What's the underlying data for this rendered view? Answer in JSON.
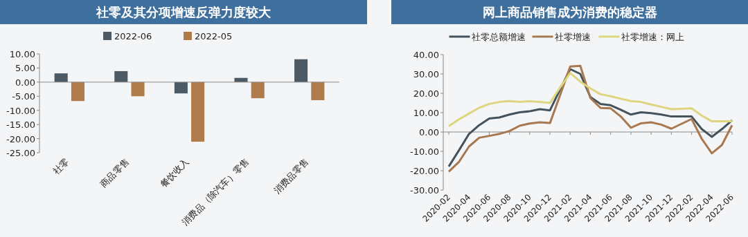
{
  "chart_data": [
    {
      "type": "bar",
      "title": "社零及其分项增速反弹力度较大",
      "categories": [
        "社零",
        "商品零售",
        "餐饮收入",
        "消费品（除汽车）零售",
        "消费品零售"
      ],
      "series": [
        {
          "name": "2022-06",
          "color": "#4b5a64",
          "values": [
            3.1,
            3.9,
            -4.0,
            1.5,
            8.1
          ]
        },
        {
          "name": "2022-05",
          "color": "#b07b4b",
          "values": [
            -6.7,
            -5.0,
            -21.1,
            -5.7,
            -6.4
          ]
        }
      ],
      "ylim": [
        -25,
        10
      ],
      "yticks": [
        {
          "value": -25,
          "label": "-25.00"
        },
        {
          "value": -20,
          "label": "-20.00"
        },
        {
          "value": -15,
          "label": "-15.00"
        },
        {
          "value": -10,
          "label": "-10.00"
        },
        {
          "value": -5,
          "label": "-5.00"
        },
        {
          "value": 0,
          "label": "0.00"
        },
        {
          "value": 5,
          "label": "5.00"
        },
        {
          "value": 10,
          "label": "10.00"
        }
      ],
      "legend": "top"
    },
    {
      "type": "line",
      "title": "网上商品销售成为消费的稳定器",
      "x": [
        "2020-02",
        "2020-03",
        "2020-04",
        "2020-05",
        "2020-06",
        "2020-07",
        "2020-08",
        "2020-09",
        "2020-10",
        "2020-11",
        "2020-12",
        "2021-01",
        "2021-02",
        "2021-03",
        "2021-04",
        "2021-05",
        "2021-06",
        "2021-07",
        "2021-08",
        "2021-09",
        "2021-10",
        "2021-11",
        "2021-12",
        "2022-01",
        "2022-02",
        "2022-03",
        "2022-04",
        "2022-05",
        "2022-06"
      ],
      "series": [
        {
          "name": "社零总额增速",
          "color": "#44525c",
          "values": [
            -17.8,
            -9.5,
            -1,
            3.5,
            7,
            7.5,
            9,
            10.2,
            10.7,
            11.8,
            11.2,
            22,
            32.5,
            30,
            18,
            14.5,
            13.8,
            11.5,
            9,
            10.2,
            9.7,
            9,
            8,
            8,
            8,
            1.5,
            -2.5,
            1.5,
            6
          ]
        },
        {
          "name": "社零增速",
          "color": "#a87850",
          "values": [
            -20.5,
            -15.5,
            -7.5,
            -3,
            -2,
            -1,
            0.5,
            3.2,
            4.4,
            5,
            4.6,
            19,
            33.8,
            34.2,
            17.5,
            12.4,
            12.2,
            8,
            2.2,
            4.5,
            5,
            3.8,
            1.7,
            4.2,
            6.7,
            -3.5,
            -11,
            -6.7,
            3.5
          ]
        },
        {
          "name": "社零增速：网上",
          "color": "#ddd67e",
          "values": [
            3,
            6.5,
            9.5,
            12.5,
            14.5,
            15.5,
            16,
            15.5,
            15.9,
            15.5,
            15,
            23,
            30.5,
            26,
            22.5,
            19.5,
            18.5,
            17.2,
            16,
            15.5,
            14.2,
            13,
            11.8,
            12,
            12.2,
            8.5,
            5.5,
            5.5,
            5.5
          ]
        }
      ],
      "xlim": [
        "2020-02",
        "2022-06"
      ],
      "xticks": [
        "2020-02",
        "2020-04",
        "2020-06",
        "2020-08",
        "2020-10",
        "2020-12",
        "2021-02",
        "2021-04",
        "2021-06",
        "2021-08",
        "2021-10",
        "2021-12",
        "2022-02",
        "2022-04",
        "2022-06"
      ],
      "ylim": [
        -30,
        40
      ],
      "yticks": [
        {
          "value": -30,
          "label": "-30.00"
        },
        {
          "value": -20,
          "label": "-20.00"
        },
        {
          "value": -10,
          "label": "-10.00"
        },
        {
          "value": 0,
          "label": "0.00"
        },
        {
          "value": 10,
          "label": "10.00"
        },
        {
          "value": 20,
          "label": "20.00"
        },
        {
          "value": 30,
          "label": "30.00"
        },
        {
          "value": 40,
          "label": "40.00"
        }
      ],
      "legend": "top"
    }
  ]
}
